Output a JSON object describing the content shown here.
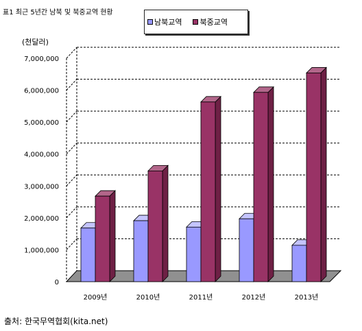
{
  "header": {
    "title": "표1 최근 5년간 남북 및 북중교역 현황"
  },
  "unit_label": "(천달러)",
  "source": "출처: 한국무역협회(kita.net)",
  "colors": {
    "south_north": "#9999ff",
    "north_china": "#993366"
  },
  "chart_data": {
    "type": "bar",
    "title": "",
    "xlabel": "",
    "ylabel": "(천달러)",
    "categories": [
      "2009년",
      "2010년",
      "2011년",
      "2012년",
      "2013년"
    ],
    "series": [
      {
        "name": "남북교역",
        "values": [
          1680000,
          1910000,
          1710000,
          1970000,
          1140000
        ]
      },
      {
        "name": "북중교역",
        "values": [
          2680000,
          3470000,
          5630000,
          5930000,
          6540000
        ]
      }
    ],
    "ylim": [
      0,
      7000000
    ],
    "yticks": [
      "0",
      "1,000,000",
      "2,000,000",
      "3,000,000",
      "4,000,000",
      "5,000,000",
      "6,000,000",
      "7,000,000"
    ],
    "grid": true,
    "legend": "top"
  }
}
